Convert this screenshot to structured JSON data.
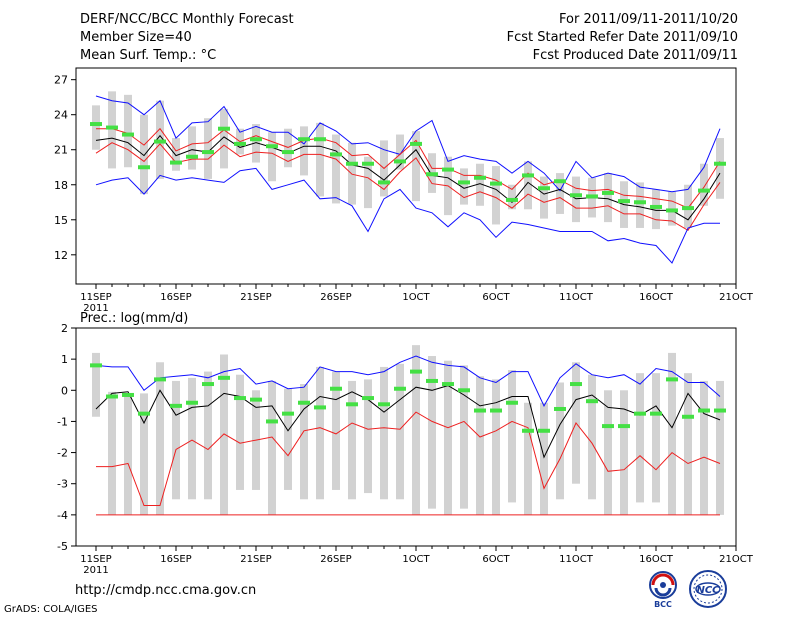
{
  "header": {
    "title": "DERF/NCC/BCC Monthly Forecast",
    "member_size": "Member Size=40",
    "variable": "Mean Surf. Temp.: °C",
    "period": "For 2011/09/11-2011/10/20",
    "started": "Fcst Started Refer Date 2011/09/10",
    "produced": "Fcst Produced Date 2011/09/11"
  },
  "footer": {
    "url": "http://cmdp.ncc.cma.gov.cn",
    "grads": "GrADS: COLA/IGES",
    "logo1_text": "BCC",
    "logo2_text": "NCC"
  },
  "colors": {
    "max_line": "#1010ff",
    "min_line": "#ee2020",
    "mean_line": "#000000",
    "band": "#d2d2d2",
    "mean_bar": "#44e044"
  },
  "chart_data": [
    {
      "type": "line",
      "title": "Mean Surf. Temp.: °C",
      "xlabel": "",
      "ylabel": "",
      "x_tick_labels": [
        "11SEP",
        "16SEP",
        "21SEP",
        "26SEP",
        "1OCT",
        "6OCT",
        "11OCT",
        "16OCT",
        "21OCT"
      ],
      "x_year_label": "2011",
      "yticks": [
        12,
        15,
        18,
        21,
        24,
        27
      ],
      "ylim": [
        9.5,
        28
      ],
      "x": [
        1,
        2,
        3,
        4,
        5,
        6,
        7,
        8,
        9,
        10,
        11,
        12,
        13,
        14,
        15,
        16,
        17,
        18,
        19,
        20,
        21,
        22,
        23,
        24,
        25,
        26,
        27,
        28,
        29,
        30,
        31,
        32,
        33,
        34,
        35,
        36,
        37,
        38,
        39,
        40
      ],
      "series": [
        {
          "name": "max",
          "values": [
            25.6,
            25.2,
            25.0,
            24.0,
            25.2,
            22.0,
            23.3,
            23.4,
            24.7,
            22.5,
            23.0,
            22.5,
            22.5,
            21.5,
            23.3,
            22.6,
            21.5,
            21.6,
            21.0,
            20.6,
            22.6,
            23.5,
            20.0,
            20.5,
            20.2,
            20.0,
            19.0,
            20.0,
            19.0,
            17.5,
            20.0,
            18.6,
            19.0,
            18.7,
            17.8,
            17.6,
            17.4,
            17.6,
            19.5,
            22.8
          ]
        },
        {
          "name": "p75",
          "values": [
            22.8,
            22.8,
            22.4,
            21.4,
            22.8,
            20.9,
            21.5,
            21.6,
            22.7,
            21.7,
            22.2,
            21.7,
            21.2,
            21.8,
            22.0,
            21.6,
            20.5,
            20.6,
            19.4,
            20.6,
            21.8,
            19.4,
            19.4,
            18.8,
            18.8,
            18.4,
            17.6,
            19.0,
            18.0,
            18.4,
            17.7,
            17.5,
            17.6,
            17.1,
            17.0,
            16.8,
            16.6,
            16.0,
            17.8,
            20.0
          ]
        },
        {
          "name": "mean",
          "values": [
            21.8,
            22.0,
            21.6,
            20.5,
            22.2,
            20.5,
            21.0,
            20.8,
            22.1,
            21.2,
            21.6,
            21.2,
            20.7,
            21.3,
            21.3,
            20.9,
            19.7,
            19.4,
            18.4,
            19.7,
            21.0,
            18.8,
            18.6,
            17.7,
            18.1,
            17.6,
            16.5,
            18.2,
            17.2,
            17.6,
            16.8,
            16.9,
            16.8,
            16.3,
            16.1,
            15.8,
            15.8,
            15.0,
            16.8,
            19.0
          ]
        },
        {
          "name": "p25",
          "values": [
            20.7,
            21.6,
            21.0,
            20.0,
            21.5,
            19.9,
            20.2,
            20.2,
            21.4,
            20.4,
            20.8,
            20.7,
            20.0,
            20.6,
            20.6,
            20.2,
            18.9,
            18.6,
            17.6,
            19.1,
            20.3,
            18.1,
            17.9,
            16.9,
            17.4,
            16.9,
            16.0,
            17.2,
            16.5,
            16.9,
            16.0,
            16.0,
            16.2,
            15.5,
            15.5,
            15.0,
            14.9,
            14.1,
            16.3,
            18.2
          ]
        },
        {
          "name": "min",
          "values": [
            18.0,
            18.4,
            18.6,
            17.2,
            18.8,
            18.4,
            18.6,
            18.4,
            18.2,
            19.2,
            19.4,
            17.6,
            18.0,
            18.4,
            16.8,
            16.9,
            16.2,
            14.0,
            16.8,
            17.6,
            16.0,
            15.6,
            14.4,
            15.6,
            15.0,
            13.5,
            14.8,
            14.6,
            14.3,
            14.0,
            14.0,
            14.0,
            13.2,
            13.4,
            13.0,
            12.8,
            11.3,
            14.3,
            14.7,
            14.7
          ]
        },
        {
          "name": "ensemble_median",
          "values": [
            23.2,
            22.9,
            22.3,
            19.5,
            21.7,
            19.9,
            20.4,
            20.8,
            22.8,
            21.5,
            21.9,
            21.3,
            20.8,
            21.9,
            21.9,
            20.6,
            19.8,
            19.8,
            18.2,
            20.0,
            21.5,
            18.9,
            19.3,
            18.2,
            18.6,
            18.1,
            16.7,
            18.8,
            17.7,
            18.3,
            17.1,
            17.0,
            17.3,
            16.6,
            16.5,
            16.1,
            15.8,
            16.0,
            17.5,
            19.8
          ]
        },
        {
          "name": "spread_high",
          "values": [
            24.8,
            26.0,
            25.7,
            24.0,
            25.2,
            22.0,
            23.0,
            23.7,
            24.5,
            22.8,
            23.2,
            22.5,
            22.8,
            23.0,
            23.3,
            22.3,
            21.6,
            20.4,
            21.8,
            22.3,
            22.6,
            20.7,
            20.4,
            19.4,
            19.8,
            19.6,
            18.0,
            20.0,
            18.7,
            19.0,
            18.7,
            18.6,
            19.0,
            18.3,
            18.2,
            17.6,
            17.4,
            18.0,
            19.8,
            22.0
          ]
        },
        {
          "name": "spread_low",
          "values": [
            21.0,
            19.4,
            19.5,
            17.2,
            18.5,
            19.2,
            19.3,
            18.5,
            19.4,
            20.6,
            19.9,
            18.3,
            19.5,
            18.8,
            17.0,
            16.4,
            16.3,
            16.0,
            17.0,
            19.3,
            16.6,
            17.3,
            15.4,
            16.3,
            16.2,
            14.6,
            15.9,
            15.9,
            15.1,
            15.5,
            14.8,
            15.2,
            14.8,
            14.3,
            14.3,
            14.2,
            14.5,
            14.3,
            16.2,
            16.8
          ]
        }
      ]
    },
    {
      "type": "line",
      "title": "Prec.: log(mm/d)",
      "xlabel": "",
      "ylabel": "",
      "x_tick_labels": [
        "11SEP",
        "16SEP",
        "21SEP",
        "26SEP",
        "1OCT",
        "6OCT",
        "11OCT",
        "16OCT",
        "21OCT"
      ],
      "x_year_label": "2011",
      "yticks": [
        -5,
        -4,
        -3,
        -2,
        -1,
        0,
        1,
        2
      ],
      "ylim": [
        -5,
        2
      ],
      "x": [
        1,
        2,
        3,
        4,
        5,
        6,
        7,
        8,
        9,
        10,
        11,
        12,
        13,
        14,
        15,
        16,
        17,
        18,
        19,
        20,
        21,
        22,
        23,
        24,
        25,
        26,
        27,
        28,
        29,
        30,
        31,
        32,
        33,
        34,
        35,
        36,
        37,
        38,
        39,
        40
      ],
      "series": [
        {
          "name": "max",
          "values": [
            0.8,
            0.75,
            0.75,
            0.0,
            0.4,
            0.45,
            0.5,
            0.4,
            0.6,
            0.7,
            0.2,
            0.3,
            0.05,
            0.1,
            0.75,
            0.6,
            0.6,
            0.5,
            0.6,
            0.9,
            1.1,
            0.9,
            0.8,
            0.75,
            0.4,
            0.25,
            0.6,
            0.6,
            -0.5,
            0.4,
            0.85,
            0.5,
            0.4,
            0.5,
            0.2,
            0.7,
            0.6,
            0.25,
            0.25,
            -0.2
          ]
        },
        {
          "name": "mean",
          "values": [
            -0.6,
            -0.1,
            -0.05,
            -1.05,
            0.0,
            -0.8,
            -0.55,
            -0.5,
            -0.1,
            -0.2,
            -0.55,
            -0.5,
            -1.3,
            -0.6,
            -0.2,
            -0.3,
            -0.05,
            -0.3,
            -0.7,
            -0.3,
            0.1,
            0.0,
            0.15,
            -0.15,
            -0.5,
            -0.4,
            -0.2,
            -0.2,
            -2.15,
            -1.1,
            -0.3,
            -0.15,
            -0.55,
            -0.6,
            -0.8,
            -0.5,
            -1.2,
            -0.1,
            -0.75,
            -0.95
          ]
        },
        {
          "name": "min",
          "values": [
            -2.45,
            -2.45,
            -2.35,
            -3.7,
            -3.7,
            -1.9,
            -1.6,
            -1.9,
            -1.4,
            -1.7,
            -1.6,
            -1.5,
            -2.1,
            -1.3,
            -1.2,
            -1.4,
            -1.05,
            -1.25,
            -1.2,
            -1.25,
            -0.7,
            -1.0,
            -1.2,
            -1.0,
            -1.5,
            -1.3,
            -1.0,
            -1.2,
            -3.15,
            -2.2,
            -1.05,
            -1.7,
            -2.6,
            -2.55,
            -2.1,
            -2.55,
            -2.0,
            -2.35,
            -2.15,
            -2.35
          ]
        },
        {
          "name": "ensemble_median",
          "values": [
            0.8,
            -0.2,
            -0.15,
            -0.75,
            0.35,
            -0.5,
            -0.4,
            0.2,
            0.4,
            -0.25,
            -0.3,
            -1.0,
            -0.75,
            -0.4,
            -0.55,
            0.05,
            -0.45,
            -0.25,
            -0.45,
            0.05,
            0.6,
            0.3,
            0.2,
            0.0,
            -0.65,
            -0.65,
            -0.4,
            -1.3,
            -1.3,
            -0.6,
            0.2,
            -0.35,
            -1.15,
            -1.15,
            -0.75,
            -0.75,
            0.35,
            -0.85,
            -0.65,
            -0.65
          ]
        },
        {
          "name": "spread_high",
          "values": [
            1.2,
            -0.05,
            -0.1,
            -0.1,
            0.9,
            0.3,
            0.4,
            0.6,
            1.15,
            0.5,
            0.0,
            0.3,
            0.05,
            0.2,
            0.75,
            0.6,
            0.3,
            0.35,
            0.75,
            0.85,
            1.45,
            1.1,
            0.95,
            0.8,
            0.45,
            0.35,
            0.65,
            -0.4,
            -0.4,
            0.25,
            0.9,
            0.5,
            0.0,
            0.0,
            0.55,
            0.55,
            1.2,
            0.55,
            0.3,
            0.3
          ]
        },
        {
          "name": "spread_low",
          "values": [
            -0.85,
            -4.0,
            -4.0,
            -4.0,
            -4.0,
            -3.5,
            -3.5,
            -3.5,
            -4.0,
            -3.2,
            -3.2,
            -4.0,
            -3.2,
            -3.5,
            -3.5,
            -3.2,
            -3.5,
            -3.3,
            -3.5,
            -3.5,
            -4.0,
            -3.8,
            -4.0,
            -3.8,
            -4.0,
            -4.0,
            -3.6,
            -4.0,
            -4.0,
            -3.5,
            -3.0,
            -3.5,
            -4.0,
            -4.0,
            -3.6,
            -3.6,
            -4.0,
            -4.0,
            -4.0,
            -4.0
          ]
        },
        {
          "name": "floor",
          "values": [
            -4.0,
            -4.0,
            -4.0,
            -4.0,
            -4.0,
            -4.0,
            -4.0,
            -4.0,
            -4.0,
            -4.0,
            -4.0,
            -4.0,
            -4.0,
            -4.0,
            -4.0,
            -4.0,
            -4.0,
            -4.0,
            -4.0,
            -4.0,
            -4.0,
            -4.0,
            -4.0,
            -4.0,
            -4.0,
            -4.0,
            -4.0,
            -4.0,
            -4.0,
            -4.0,
            -4.0,
            -4.0,
            -4.0,
            -4.0,
            -4.0,
            -4.0,
            -4.0,
            -4.0,
            -4.0,
            -4.0
          ]
        }
      ]
    }
  ]
}
